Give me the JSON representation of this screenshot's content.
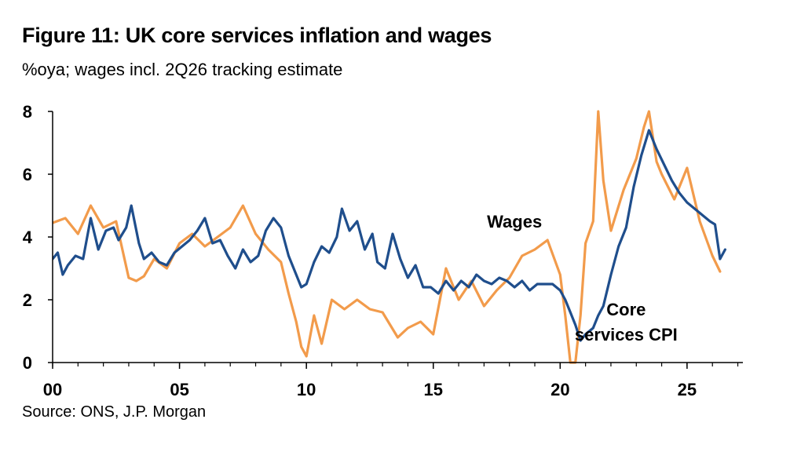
{
  "title": "Figure 11: UK core services inflation and wages",
  "subtitle": "%oya; wages incl. 2Q26 tracking estimate",
  "source": "Source: ONS, J.P. Morgan",
  "chart_data": {
    "type": "line",
    "title": "Figure 11: UK core services inflation and wages",
    "subtitle": "%oya; wages incl. 2Q26 tracking estimate",
    "xlabel": "",
    "ylabel": "",
    "xlim": [
      2000,
      2027.2
    ],
    "ylim": [
      0,
      8
    ],
    "x_ticks": [
      2000,
      2005,
      2010,
      2015,
      2020,
      2025
    ],
    "x_tick_labels": [
      "00",
      "05",
      "10",
      "15",
      "20",
      "25"
    ],
    "y_ticks": [
      0,
      2,
      4,
      6,
      8
    ],
    "y_tick_labels": [
      "0",
      "2",
      "4",
      "6",
      "8"
    ],
    "grid": false,
    "legend": "inline labels",
    "series": [
      {
        "name": "Wages",
        "color": "#F29B4B",
        "x": [
          2000.0,
          2000.5,
          2001.0,
          2001.5,
          2002.0,
          2002.5,
          2003.0,
          2003.3,
          2003.6,
          2004.0,
          2004.5,
          2005.0,
          2005.5,
          2006.0,
          2006.5,
          2007.0,
          2007.5,
          2008.0,
          2008.5,
          2009.0,
          2009.3,
          2009.6,
          2009.8,
          2010.0,
          2010.3,
          2010.6,
          2011.0,
          2011.5,
          2012.0,
          2012.5,
          2013.0,
          2013.3,
          2013.6,
          2014.0,
          2014.5,
          2015.0,
          2015.5,
          2016.0,
          2016.5,
          2017.0,
          2017.5,
          2018.0,
          2018.5,
          2019.0,
          2019.5,
          2020.0,
          2020.2,
          2020.4,
          2020.6,
          2020.8,
          2021.0,
          2021.3,
          2021.5,
          2021.7,
          2022.0,
          2022.5,
          2023.0,
          2023.3,
          2023.5,
          2023.8,
          2024.0,
          2024.5,
          2025.0,
          2025.5,
          2026.0,
          2026.3
        ],
        "y": [
          4.45,
          4.6,
          4.1,
          5.0,
          4.3,
          4.5,
          2.7,
          2.6,
          2.75,
          3.3,
          3.0,
          3.8,
          4.1,
          3.7,
          4.0,
          4.3,
          5.0,
          4.1,
          3.6,
          3.2,
          2.2,
          1.3,
          0.5,
          0.2,
          1.5,
          0.6,
          2.0,
          1.7,
          2.0,
          1.7,
          1.6,
          1.2,
          0.8,
          1.1,
          1.3,
          0.9,
          3.0,
          2.0,
          2.6,
          1.8,
          2.3,
          2.7,
          3.4,
          3.6,
          3.9,
          2.8,
          1.5,
          0.0,
          0.0,
          1.5,
          3.8,
          4.5,
          8.0,
          5.8,
          4.2,
          5.5,
          6.5,
          7.5,
          8.0,
          6.4,
          6.0,
          5.2,
          6.2,
          4.5,
          3.4,
          2.9
        ]
      },
      {
        "name": "Core services CPI",
        "color": "#1F4E8C",
        "x": [
          2000.0,
          2000.2,
          2000.4,
          2000.6,
          2000.9,
          2001.2,
          2001.5,
          2001.8,
          2002.1,
          2002.4,
          2002.6,
          2002.9,
          2003.1,
          2003.4,
          2003.6,
          2003.9,
          2004.2,
          2004.5,
          2004.8,
          2005.1,
          2005.4,
          2005.7,
          2006.0,
          2006.3,
          2006.6,
          2006.9,
          2007.2,
          2007.5,
          2007.8,
          2008.1,
          2008.4,
          2008.7,
          2009.0,
          2009.3,
          2009.6,
          2009.8,
          2010.0,
          2010.3,
          2010.6,
          2010.9,
          2011.2,
          2011.4,
          2011.7,
          2012.0,
          2012.3,
          2012.6,
          2012.8,
          2013.1,
          2013.4,
          2013.7,
          2014.0,
          2014.3,
          2014.6,
          2014.9,
          2015.2,
          2015.5,
          2015.8,
          2016.1,
          2016.4,
          2016.7,
          2017.0,
          2017.3,
          2017.6,
          2017.9,
          2018.2,
          2018.5,
          2018.8,
          2019.1,
          2019.4,
          2019.7,
          2020.0,
          2020.2,
          2020.4,
          2020.6,
          2020.8,
          2021.0,
          2021.3,
          2021.5,
          2021.7,
          2022.0,
          2022.3,
          2022.6,
          2022.9,
          2023.2,
          2023.5,
          2023.8,
          2024.1,
          2024.4,
          2024.7,
          2025.0,
          2025.3,
          2025.6,
          2025.9,
          2026.1,
          2026.3,
          2026.5
        ],
        "y": [
          3.3,
          3.5,
          2.8,
          3.1,
          3.4,
          3.3,
          4.6,
          3.6,
          4.2,
          4.3,
          3.9,
          4.3,
          5.0,
          3.8,
          3.3,
          3.5,
          3.2,
          3.1,
          3.5,
          3.7,
          3.9,
          4.2,
          4.6,
          3.8,
          3.9,
          3.4,
          3.0,
          3.6,
          3.2,
          3.4,
          4.2,
          4.6,
          4.3,
          3.4,
          2.8,
          2.4,
          2.5,
          3.2,
          3.7,
          3.5,
          4.0,
          4.9,
          4.2,
          4.5,
          3.6,
          4.1,
          3.2,
          3.0,
          4.1,
          3.3,
          2.7,
          3.1,
          2.4,
          2.4,
          2.2,
          2.6,
          2.3,
          2.6,
          2.4,
          2.8,
          2.6,
          2.5,
          2.7,
          2.6,
          2.4,
          2.6,
          2.3,
          2.5,
          2.5,
          2.5,
          2.3,
          2.0,
          1.6,
          1.2,
          0.7,
          0.9,
          1.1,
          1.5,
          1.8,
          2.8,
          3.7,
          4.3,
          5.6,
          6.6,
          7.4,
          6.8,
          6.3,
          5.8,
          5.4,
          5.1,
          4.9,
          4.7,
          4.5,
          4.4,
          3.3,
          3.6
        ]
      }
    ],
    "annotations": [
      {
        "text": "Wages",
        "series": "Wages",
        "x": 2018.2,
        "y": 4.3
      },
      {
        "text": "Core services CPI",
        "series": "Core services CPI",
        "lines": [
          "Core",
          "services CPI"
        ],
        "x": 2022.6,
        "y": 1.5
      }
    ]
  }
}
